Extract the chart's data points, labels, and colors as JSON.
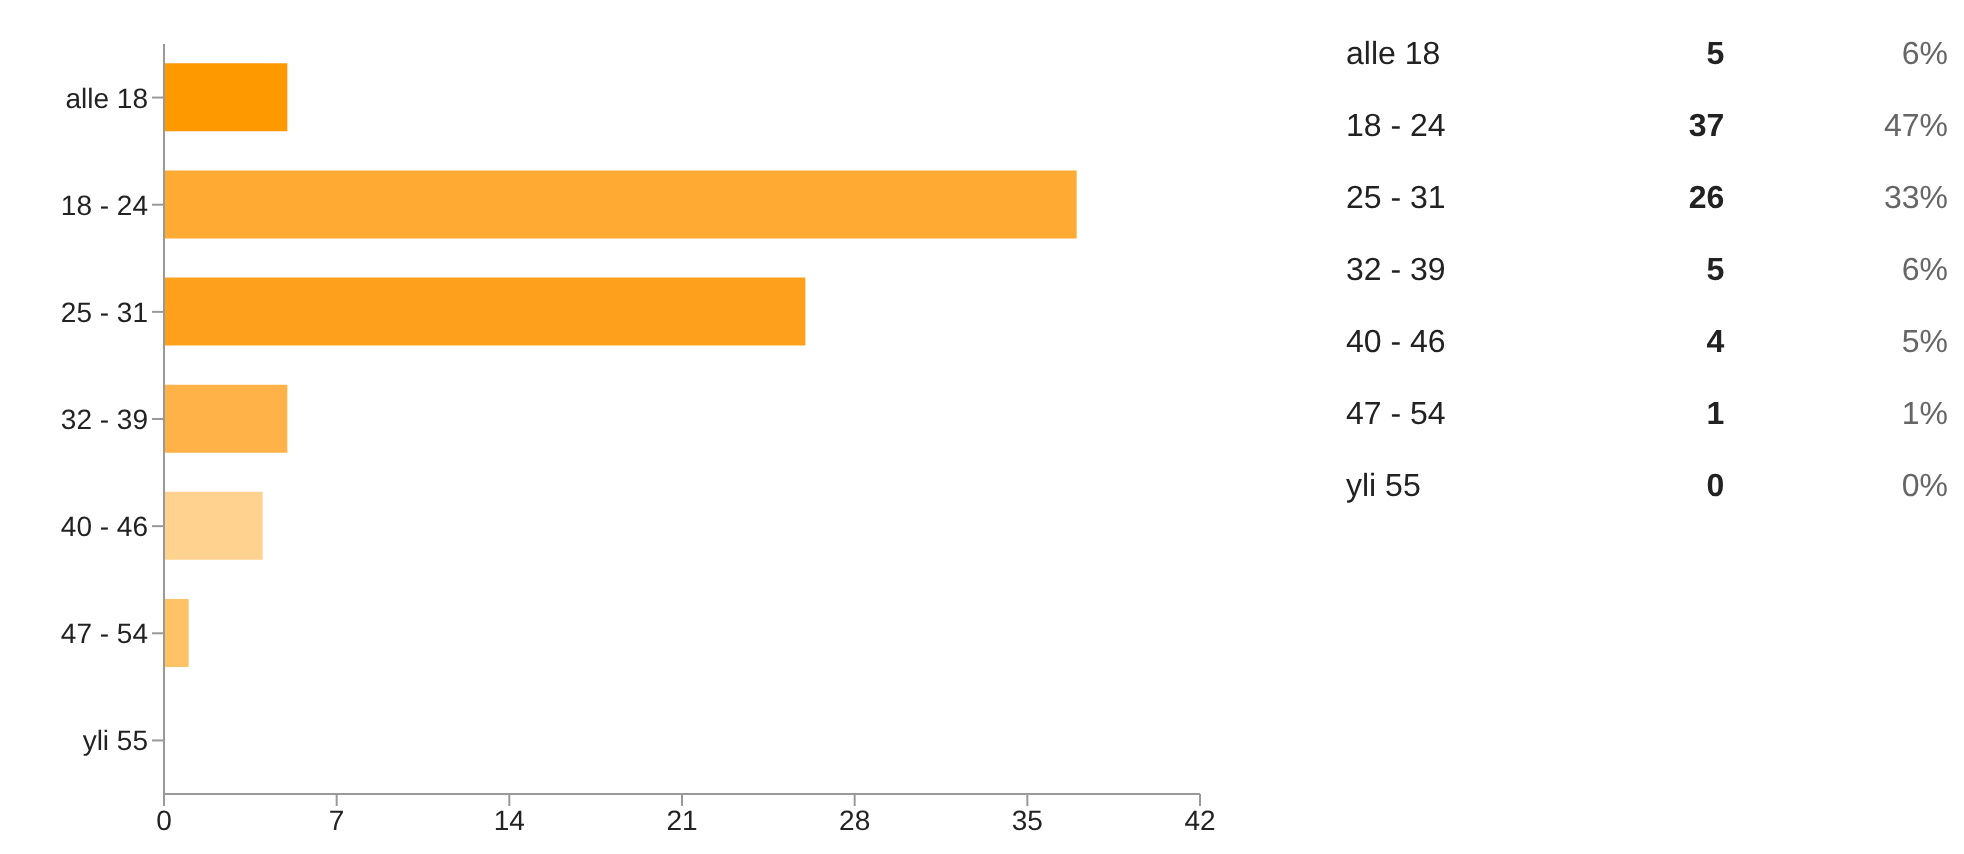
{
  "chart_data": [
    {
      "type": "bar",
      "orientation": "horizontal",
      "categories": [
        "alle 18",
        "18 - 24",
        "25 - 31",
        "32 - 39",
        "40 - 46",
        "47 - 54",
        "yli 55"
      ],
      "values": [
        5,
        37,
        26,
        5,
        4,
        1,
        0
      ],
      "colors": [
        "#ff9900",
        "#ffaa33",
        "#ffa01c",
        "#ffb247",
        "#ffd28f",
        "#ffc266",
        "#ffc266"
      ],
      "xlim": [
        0,
        42
      ],
      "xticks": [
        0,
        7,
        14,
        21,
        28,
        35,
        42
      ]
    },
    {
      "type": "other",
      "annotations": [
        "alle 18",
        "5",
        "6%",
        "18 - 24",
        "37",
        "47%",
        "25 - 31",
        "26",
        "33%",
        "32 - 39",
        "5",
        "6%",
        "40 - 46",
        "4",
        "5%",
        "47 - 54",
        "1",
        "1%",
        "yli 55",
        "0",
        "0%"
      ]
    }
  ]
}
